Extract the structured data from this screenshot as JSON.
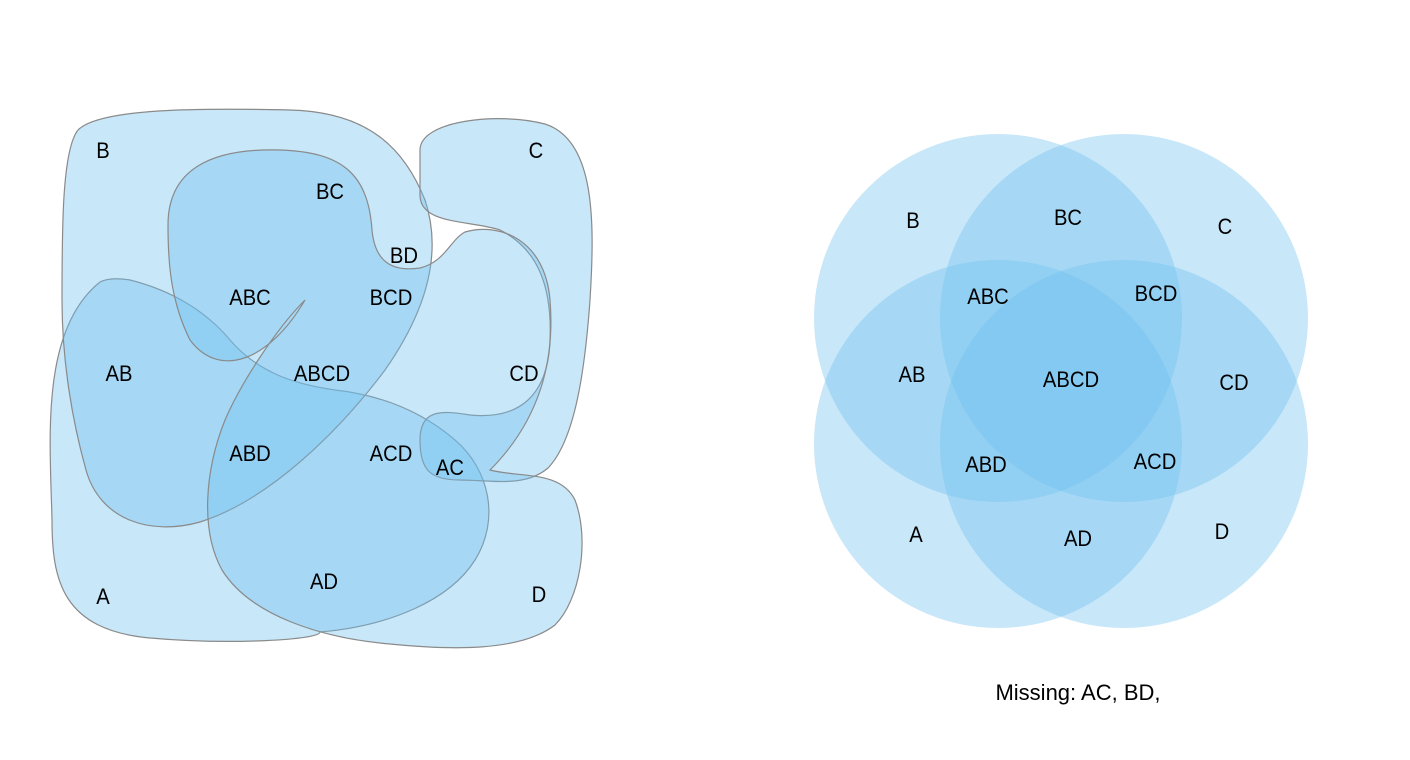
{
  "colors": {
    "fill": "#6ec1ee",
    "stroke": "#8a8a8a"
  },
  "left_diagram": {
    "labels": {
      "a": "A",
      "b": "B",
      "c": "C",
      "d": "D",
      "ab": "AB",
      "bc": "BC",
      "cd": "CD",
      "ad": "AD",
      "bd": "BD",
      "ac": "AC",
      "abc": "ABC",
      "bcd": "BCD",
      "abd": "ABD",
      "acd": "ACD",
      "abcd": "ABCD"
    }
  },
  "right_diagram": {
    "labels": {
      "a": "A",
      "b": "B",
      "c": "C",
      "d": "D",
      "ab": "AB",
      "bc": "BC",
      "cd": "CD",
      "ad": "AD",
      "abc": "ABC",
      "bcd": "BCD",
      "abd": "ABD",
      "acd": "ACD",
      "abcd": "ABCD"
    },
    "caption": "Missing: AC, BD,"
  }
}
